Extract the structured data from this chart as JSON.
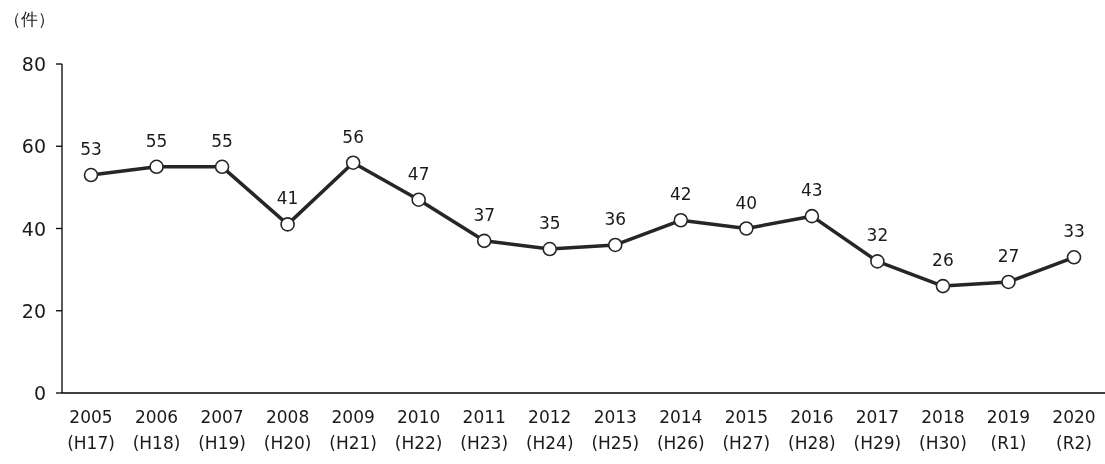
{
  "chart_data": {
    "type": "line",
    "ylabel": "（件）",
    "categories": [
      "2005 (H17)",
      "2006 (H18)",
      "2007 (H19)",
      "2008 (H20)",
      "2009 (H21)",
      "2010 (H22)",
      "2011 (H23)",
      "2012 (H24)",
      "2013 (H25)",
      "2014 (H26)",
      "2015 (H27)",
      "2016 (H28)",
      "2017 (H29)",
      "2018 (H30)",
      "2019 (R1)",
      "2020 (R2)"
    ],
    "values": [
      53,
      55,
      55,
      41,
      56,
      47,
      37,
      35,
      36,
      42,
      40,
      43,
      32,
      26,
      27,
      33
    ],
    "color": "#262626",
    "marker": "circle",
    "line_style": "solid",
    "data_labels": true,
    "ylim": [
      0,
      80
    ],
    "yticks": [
      0,
      20,
      40,
      60,
      80
    ]
  }
}
